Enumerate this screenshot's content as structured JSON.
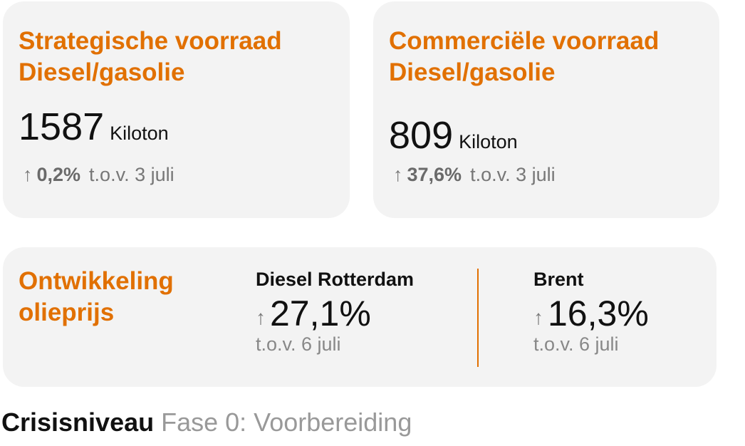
{
  "accent_color": "#e17000",
  "cards": [
    {
      "title_line1": "Strategische voorraad",
      "title_line2": "Diesel/gasolie",
      "value": "1587",
      "unit": "Kiloton",
      "arrow_icon": "arrow-up",
      "change": "0,2%",
      "compare": "t.o.v. 3 juli"
    },
    {
      "title_line1": "Commerciële voorraad",
      "title_line2": "Diesel/gasolie",
      "value": "809",
      "unit": "Kiloton",
      "arrow_icon": "arrow-up",
      "change": "37,6%",
      "compare": "t.o.v. 3 juli"
    }
  ],
  "prices": {
    "title_line1": "Ontwikkeling",
    "title_line2": "olieprijs",
    "items": [
      {
        "label": "Diesel Rotterdam",
        "arrow_icon": "arrow-up",
        "change": "27,1%",
        "compare": "t.o.v. 6 juli"
      },
      {
        "label": "Brent",
        "arrow_icon": "arrow-up",
        "change": "16,3%",
        "compare": "t.o.v. 6 juli"
      }
    ]
  },
  "crisis": {
    "label": "Crisisniveau",
    "value": "Fase 0: Voorbereiding"
  }
}
